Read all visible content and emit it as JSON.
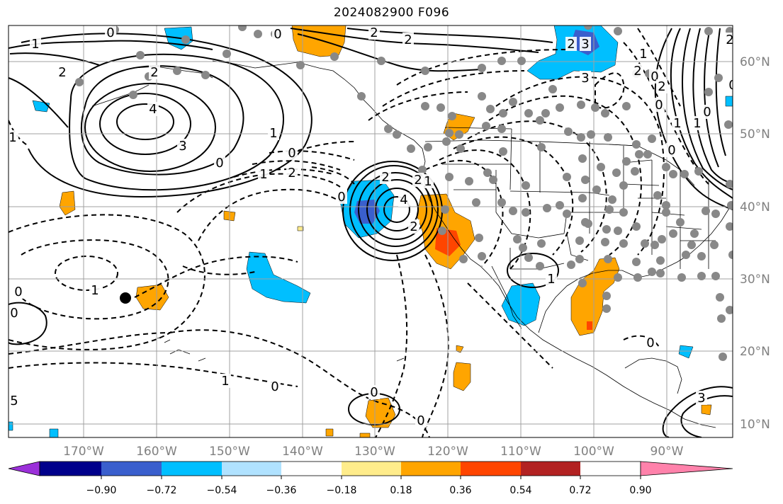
{
  "title": "2024082900 F096",
  "lon_labels": [
    "170°W",
    "160°W",
    "150°W",
    "140°W",
    "130°W",
    "120°W",
    "110°W",
    "100°W",
    "90°W"
  ],
  "lat_labels": [
    "60°N",
    "50°N",
    "40°N",
    "30°N",
    "20°N",
    "10°N"
  ],
  "colorbar": {
    "ticks": [
      "−0.90",
      "−0.72",
      "−0.54",
      "−0.36",
      "−0.18",
      "0.18",
      "0.36",
      "0.54",
      "0.72",
      "0.90"
    ],
    "colors": [
      "#9b30d9",
      "#00008b",
      "#3a5fcd",
      "#00bfff",
      "#b0e2ff",
      "#ffffff",
      "#ffec8b",
      "#ffa500",
      "#ff4500",
      "#b22222",
      "#ff82ab"
    ]
  },
  "colors": {
    "positive_fill": "#ffa500",
    "strong_positive_fill": "#ff4500",
    "negative_fill": "#00bfff",
    "strong_negative_fill": "#3a5fcd",
    "station_marker": "#888888",
    "contour": "#000000",
    "grid": "#a0a0a0",
    "axis_label": "#808080"
  },
  "contour_labels": [
    "0",
    "2",
    "2",
    "2",
    "0",
    "1",
    "2",
    "4",
    "3",
    "1",
    "0",
    "0",
    "2",
    "1",
    "2",
    "4",
    "2",
    "2",
    "3",
    "0",
    "1",
    "1",
    "0",
    "1",
    "0",
    "0",
    "0",
    "1",
    "0",
    "2",
    "3",
    "0",
    "5",
    "3",
    "2",
    "1",
    "0",
    "0",
    "1",
    "1",
    "0",
    "0",
    "1",
    "2",
    "0",
    "2"
  ]
}
